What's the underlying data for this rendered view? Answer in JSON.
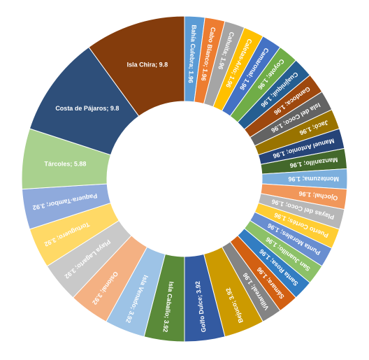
{
  "chart_data": {
    "type": "pie",
    "variant": "donut",
    "title": "",
    "legend": "none",
    "label_format": "{name}; {value}",
    "slices": [
      {
        "name": "Bahía Culebra",
        "value": 1.96,
        "color": "#5b9bd5"
      },
      {
        "name": "Cabo Blanco",
        "value": 1.96,
        "color": "#ed7d31"
      },
      {
        "name": "Cahuita",
        "value": 1.96,
        "color": "#a5a5a5"
      },
      {
        "name": "Caletas-Ario",
        "value": 1.96,
        "color": "#ffc000"
      },
      {
        "name": "Camaronal",
        "value": 1.96,
        "color": "#4472c4"
      },
      {
        "name": "Coyote",
        "value": 1.96,
        "color": "#70ad47"
      },
      {
        "name": "Cuajiniquil",
        "value": 1.96,
        "color": "#255e91"
      },
      {
        "name": "Gandoca",
        "value": 1.96,
        "color": "#9e480e"
      },
      {
        "name": "Isla del Coco",
        "value": 1.96,
        "color": "#636363"
      },
      {
        "name": "Jacó",
        "value": 1.96,
        "color": "#997300"
      },
      {
        "name": "Manuel Antonio",
        "value": 1.96,
        "color": "#264478"
      },
      {
        "name": "Manzanillo",
        "value": 1.96,
        "color": "#43682b"
      },
      {
        "name": "Montezuma",
        "value": 1.96,
        "color": "#7cafdd"
      },
      {
        "name": "Ojochal",
        "value": 1.96,
        "color": "#f1975a"
      },
      {
        "name": "Playas del Coco",
        "value": 1.96,
        "color": "#b7b7b7"
      },
      {
        "name": "Puerto Cortés",
        "value": 1.96,
        "color": "#ffcd33"
      },
      {
        "name": "Punta Morales",
        "value": 1.96,
        "color": "#698ed0"
      },
      {
        "name": "San Juanillo",
        "value": 1.96,
        "color": "#8cc168"
      },
      {
        "name": "Santa Rosa",
        "value": 1.96,
        "color": "#327dc2"
      },
      {
        "name": "Sámara",
        "value": 1.96,
        "color": "#d26012"
      },
      {
        "name": "Villarreal",
        "value": 1.96,
        "color": "#848484"
      },
      {
        "name": "Bejuco",
        "value": 3.92,
        "color": "#cc9a00"
      },
      {
        "name": "Golfo Dulce",
        "value": 3.92,
        "color": "#335aa1"
      },
      {
        "name": "Isla Caballo",
        "value": 3.92,
        "color": "#5a8a39"
      },
      {
        "name": "Isla Venado",
        "value": 3.92,
        "color": "#9dc3e6"
      },
      {
        "name": "Osional",
        "value": 3.92,
        "color": "#f4b183"
      },
      {
        "name": "Playa Lagarto",
        "value": 3.92,
        "color": "#c9c9c9"
      },
      {
        "name": "Tortuguero",
        "value": 3.92,
        "color": "#ffd966"
      },
      {
        "name": "Paquera-Tambor",
        "value": 3.92,
        "color": "#8faadc"
      },
      {
        "name": "Tárcoles",
        "value": 5.88,
        "color": "#a9d18e"
      },
      {
        "name": "Costa de Pájaros",
        "value": 9.8,
        "color": "#2e4f7a"
      },
      {
        "name": "Isla Chira",
        "value": 9.8,
        "color": "#843c0c"
      }
    ]
  }
}
